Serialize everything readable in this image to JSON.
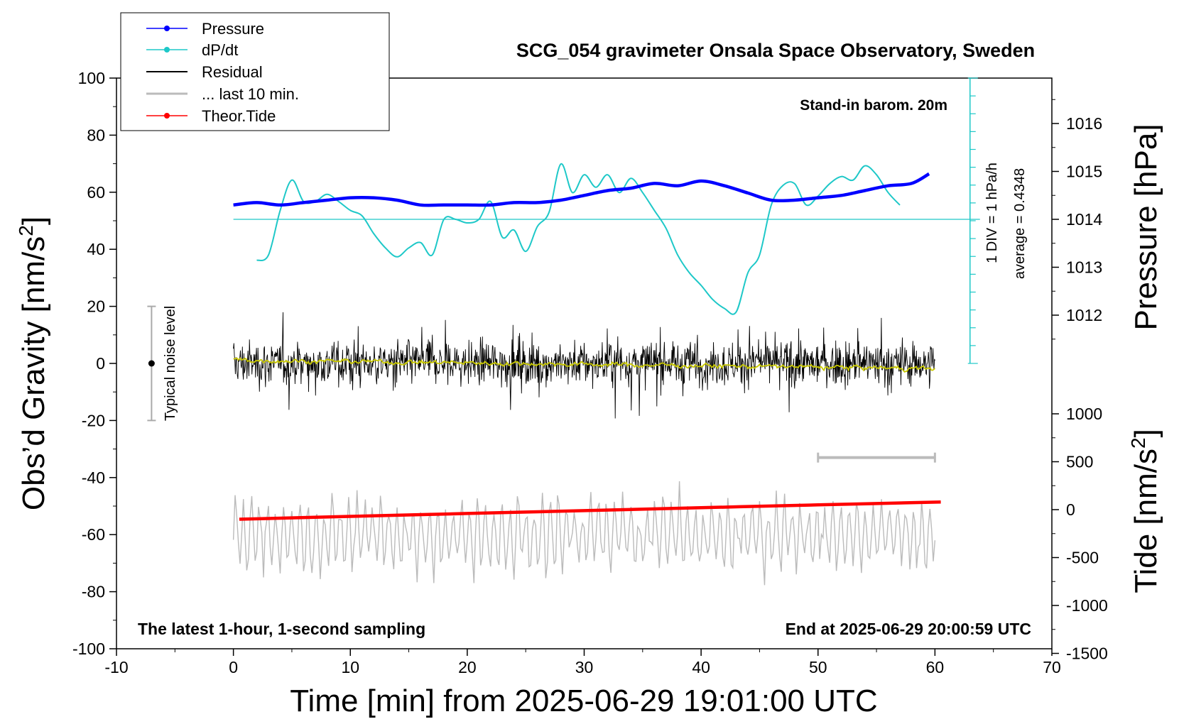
{
  "chart_data": {
    "type": "line",
    "title": "SCG_054 gravimeter Onsala Space Observatory, Sweden",
    "xlabel": "Time [min] from 2025-06-29 19:01:00 UTC",
    "ylabel_left": "Obs’d Gravity [nm/s",
    "ylabel_left_sup": "2",
    "ylabel_left_close": "]",
    "ylabel_pressure": "Pressure [hPa]",
    "ylabel_tide": "Tide [nm/s",
    "ylabel_tide_sup": "2",
    "ylabel_tide_close": "]",
    "xlim": [
      -10,
      70
    ],
    "ylim": [
      -100,
      100
    ],
    "x_ticks": [
      "-10",
      "0",
      "10",
      "20",
      "30",
      "40",
      "50",
      "60",
      "70"
    ],
    "y_ticks": [
      "-100",
      "-80",
      "-60",
      "-40",
      "-20",
      "0",
      "20",
      "40",
      "60",
      "80",
      "100"
    ],
    "pressure_ticks": [
      "1012",
      "1013",
      "1014",
      "1015",
      "1016"
    ],
    "pressure_lim": [
      1011,
      1017
    ],
    "tide_ticks": [
      "-1500",
      "-1000",
      "-500",
      "0",
      "500",
      "1000"
    ],
    "tide_lim": [
      -1500,
      1000
    ],
    "legend_placement": "top-left",
    "legend": [
      "Pressure",
      "dP/dt",
      "Residual",
      "... last 10 min.",
      "Theor.Tide"
    ],
    "colors": {
      "pressure": "#0000ff",
      "dpdt": "#1ec8c8",
      "residual": "#000000",
      "last10": "#bbbbbb",
      "tide": "#ff0000",
      "smooth": "#c8c800"
    },
    "annotations": {
      "barometer": "Stand-in barom. 20m",
      "scale": "1 DIV = 1 hPa/h",
      "average": "average = 0.4348",
      "noise": "Typical noise level",
      "sampling": "The latest 1-hour, 1-second sampling",
      "end": "End at 2025-06-29 20:00:59 UTC"
    },
    "series": [
      {
        "name": "Pressure",
        "x": [
          0,
          2,
          4,
          6,
          8,
          10,
          12,
          14,
          16,
          18,
          20,
          22,
          24,
          26,
          28,
          30,
          32,
          34,
          36,
          38,
          40,
          42,
          44,
          46,
          48,
          50,
          52,
          54,
          56,
          58,
          59.5
        ],
        "y": [
          1014.3,
          1014.35,
          1014.3,
          1014.35,
          1014.4,
          1014.45,
          1014.45,
          1014.4,
          1014.3,
          1014.3,
          1014.3,
          1014.3,
          1014.35,
          1014.35,
          1014.4,
          1014.5,
          1014.6,
          1014.65,
          1014.75,
          1014.7,
          1014.8,
          1014.7,
          1014.55,
          1014.4,
          1014.4,
          1014.45,
          1014.5,
          1014.6,
          1014.7,
          1014.75,
          1014.95
        ]
      },
      {
        "name": "dP/dt",
        "x": [
          2,
          3,
          4,
          5,
          6,
          7,
          8,
          9,
          10,
          11,
          12,
          13,
          14,
          15,
          16,
          17,
          18,
          19,
          20,
          21,
          22,
          23,
          24,
          25,
          26,
          27,
          28,
          29,
          30,
          31,
          32,
          33,
          34,
          35,
          36,
          37,
          38,
          39,
          40,
          41,
          42,
          43,
          44,
          45,
          46,
          47,
          48,
          49,
          50,
          51,
          52,
          53,
          54,
          55,
          56,
          57
        ],
        "y": [
          -2.3,
          -2.0,
          0.5,
          2.2,
          1.0,
          1.0,
          1.4,
          1.0,
          0.5,
          0.2,
          -0.8,
          -1.6,
          -2.1,
          -1.6,
          -1.3,
          -2.0,
          0.0,
          0.0,
          -0.2,
          0.0,
          1.0,
          -1.0,
          -0.6,
          -1.8,
          -0.4,
          0.4,
          3.1,
          1.5,
          2.5,
          1.8,
          2.5,
          1.5,
          2.3,
          1.5,
          0.5,
          -0.5,
          -2.0,
          -3.0,
          -3.7,
          -4.5,
          -5.0,
          -5.2,
          -3.0,
          -2.0,
          0.8,
          1.9,
          2.0,
          0.8,
          1.3,
          2.0,
          2.4,
          2.2,
          3.0,
          2.5,
          1.5,
          0.8
        ]
      },
      {
        "name": "Theor.Tide",
        "x": [
          0.5,
          10,
          20,
          30,
          40,
          50,
          60.5
        ],
        "y": [
          -100,
          -70,
          -40,
          -10,
          20,
          50,
          80
        ]
      }
    ],
    "residual_x_range": [
      0,
      60
    ],
    "residual_amplitude_typical": 10,
    "residual_amplitude_max": 26,
    "noise_level_bar": [
      -20,
      20
    ],
    "noise_level_x": -7,
    "last10_x_range": [
      50,
      60
    ],
    "last10_display_offset": -60,
    "dpdt_zero_pressure": 1014
  }
}
